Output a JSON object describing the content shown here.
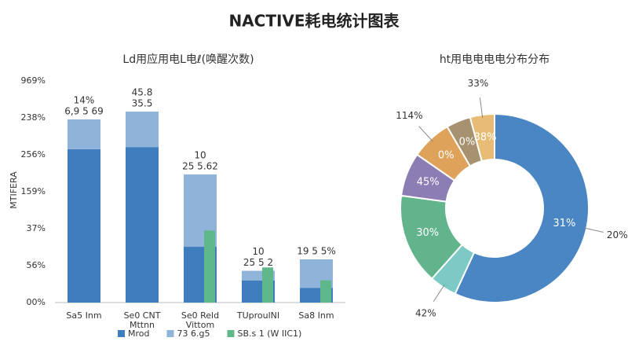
{
  "title": "NACTIVE耗电统计图表",
  "chart_data": [
    {
      "type": "bar",
      "title": "Ld用应用电L电ℓ(唤醒次数)",
      "y_label": "MTIFERA",
      "categories": [
        [
          "Sa5 Inm"
        ],
        [
          "Se0 CNT",
          "Mttnn"
        ],
        [
          "Se0 Reld",
          "Vittom"
        ],
        [
          "TUproulNI"
        ],
        [
          "Sa8 Inm"
        ]
      ],
      "series": [
        {
          "name": "Mrod",
          "color": "#3f7dbf",
          "values": [
            4.15,
            4.21,
            1.51,
            0.6,
            0.4
          ]
        },
        {
          "name": "73 6.g5",
          "color": "#8fb3d9",
          "values": [
            0.81,
            0.96,
            1.96,
            0.26,
            0.77
          ]
        },
        {
          "name": "SB.s 1 (W IIC1)",
          "color": "#5fb88a",
          "values": [
            null,
            null,
            1.95,
            0.95,
            0.6
          ],
          "overlay": true
        }
      ],
      "bar_labels": [
        [
          "14%",
          "6,9  5 69"
        ],
        [
          "45.8",
          "35.5"
        ],
        [
          "10",
          "25  5.62"
        ],
        [
          "10",
          "25 5 2"
        ],
        [
          "19 5 5%"
        ]
      ],
      "ylim": [
        0,
        6
      ],
      "yticks": [
        {
          "value": 0,
          "label": "00%"
        },
        {
          "value": 1,
          "label": "56%"
        },
        {
          "value": 2,
          "label": "37%"
        },
        {
          "value": 3,
          "label": "159%"
        },
        {
          "value": 4,
          "label": "256%"
        },
        {
          "value": 5,
          "label": "238%"
        },
        {
          "value": 6,
          "label": "969%"
        }
      ]
    },
    {
      "type": "donut",
      "title": "ht用电电电电分布分布",
      "categories": [
        "blue",
        "teal",
        "green",
        "purple",
        "orange",
        "brown",
        "tan"
      ],
      "values": [
        57,
        4.7,
        15.6,
        7.5,
        7,
        4.2,
        4.2
      ],
      "colors": [
        "#4a86c3",
        "#7cc9c6",
        "#62b48c",
        "#8d7db5",
        "#dea25a",
        "#a69271",
        "#e9bc76"
      ],
      "inner_labels": [
        "31%",
        null,
        "30%",
        "45%",
        "0%",
        "0%",
        "38%"
      ],
      "outer_labels": [
        "20%",
        "42%",
        null,
        null,
        "114%",
        null,
        "33%"
      ]
    }
  ]
}
